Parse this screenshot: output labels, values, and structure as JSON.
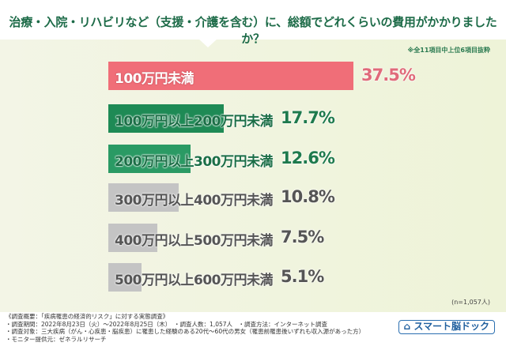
{
  "title": "治療・入院・リハビリなど（支援・介護を含む）に、総額でどれくらいの費用がかかりましたか？",
  "note": "※全11項目中上位6項目抜粋",
  "sample": "(n=1,057人)",
  "chart_data": {
    "type": "bar",
    "orientation": "horizontal",
    "categories": [
      "100万円未満",
      "100万円以上200万円未満",
      "200万円以上300万円未満",
      "300万円以上400万円未満",
      "400万円以上500万円未満",
      "500万円以上600万円未満"
    ],
    "values": [
      37.5,
      17.7,
      12.6,
      10.8,
      7.5,
      5.1
    ],
    "value_labels": [
      "37.5%",
      "17.7%",
      "12.6%",
      "10.8%",
      "7.5%",
      "5.1%"
    ],
    "bar_colors": [
      "#f06e78",
      "#1e8a55",
      "#2a9a64",
      "#c4c4c4",
      "#c4c4c4",
      "#c4c4c4"
    ],
    "value_colors": [
      "#e06a7a",
      "#1e7a4d",
      "#1e7a4d",
      "#555555",
      "#555555",
      "#555555"
    ]
  },
  "footer": {
    "lines": [
      "《調査概要：「疾病罹患の経済的リスク」に対する実態調査》",
      "・調査期間：2022年8月23日（火）～2022年8月25日（木）　・調査人数：1,057人　・調査方法：インターネット調査",
      "・調査対象：三大疾病（がん・心疾患・脳疾患）に罹患した経験のある20代～60代の男女（罹患前罹患後いずれも収入源があった方）",
      "・モニター提供元：ゼネラルリサーチ"
    ],
    "logo": "スマート脳ドック"
  }
}
